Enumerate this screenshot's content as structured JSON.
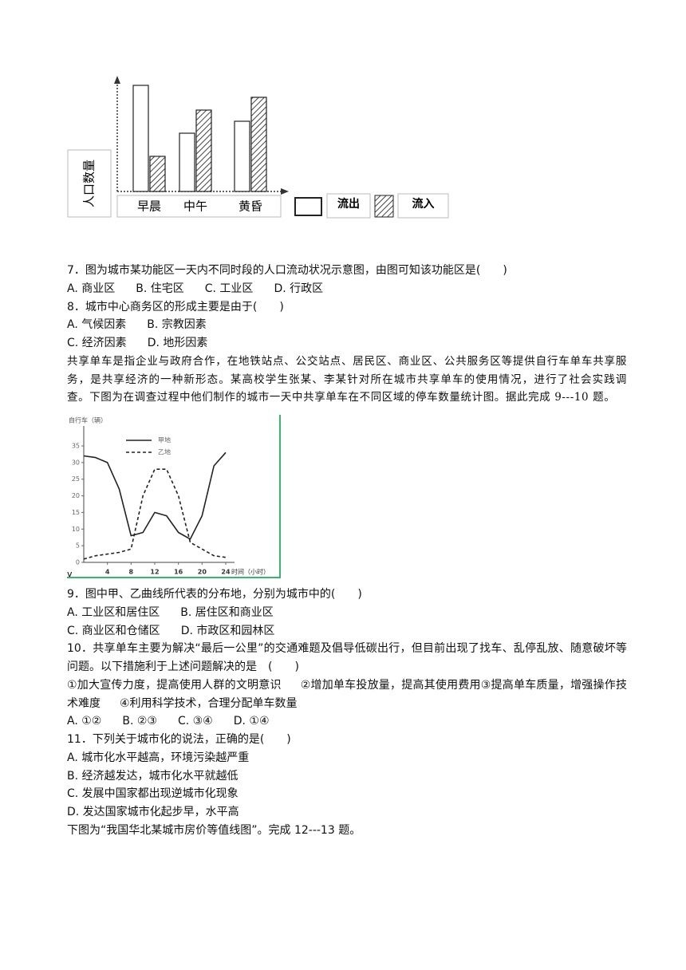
{
  "chart_data": [
    {
      "type": "bar",
      "y_axis_label": "人口数量",
      "categories": [
        "早晨",
        "中午",
        "黄昏"
      ],
      "series": [
        {
          "name": "流出",
          "color": "#ffffff",
          "pattern": "none",
          "values": [
            133,
            73,
            88
          ]
        },
        {
          "name": "流入",
          "color": "#444444",
          "pattern": "diagonal-hatch",
          "values": [
            44,
            102,
            118
          ]
        }
      ],
      "ylim": [
        0,
        150
      ]
    },
    {
      "type": "line",
      "y_axis_label": "自行车（辆）",
      "x_axis_label": "时间（小时）",
      "x": [
        0,
        2,
        4,
        6,
        8,
        10,
        12,
        14,
        16,
        18,
        20,
        22,
        24
      ],
      "series": [
        {
          "name": "甲地",
          "color": "#222222",
          "dash": "solid",
          "values": [
            32,
            31.5,
            30,
            22,
            8,
            9,
            15,
            14,
            9,
            7,
            14,
            29,
            33
          ]
        },
        {
          "name": "乙地",
          "color": "#222222",
          "dash": "dashed",
          "values": [
            1,
            2,
            2.5,
            3,
            4,
            20,
            28,
            28,
            20,
            6,
            4,
            2,
            1.5
          ]
        }
      ],
      "xlim": [
        0,
        24
      ],
      "ylim": [
        0,
        35
      ],
      "xticks": [
        4,
        8,
        12,
        16,
        20,
        24
      ],
      "yticks": [
        0,
        5,
        10,
        15,
        20,
        25,
        30,
        35
      ]
    }
  ],
  "figure_note": "v",
  "questions": [
    {
      "stem": "7．图为城市某功能区一天内不同时段的人口流动状况示意图，由图可知该功能区是(　　)",
      "options": [
        [
          "A. 商业区",
          "B. 住宅区",
          "C. 工业区",
          "D. 行政区"
        ]
      ]
    },
    {
      "stem": "8．城市中心商务区的形成主要是由于(　　)",
      "options": [
        [
          "A. 气候因素",
          "B. 宗教因素"
        ],
        [
          "C. 经济因素",
          "D. 地形因素"
        ]
      ]
    },
    {
      "stem": "9．图中甲、乙曲线所代表的分布地，分别为城市中的(　　)",
      "options": [
        [
          "A. 工业区和居住区",
          "B. 居住区和商业区"
        ],
        [
          "C. 商业区和仓储区",
          "D. 市政区和园林区"
        ]
      ]
    },
    {
      "stem": "10．共享单车主要为解决“最后一公里”的交通难题及倡导低碳出行，但目前出现了找车、乱停乱放、随意破坏等问题。以下措施利于上述问题解决的是　(　　)",
      "statements": [
        "①加大宣传力度，提高使用人群的文明意识",
        "②增加单车投放量，提高其使用费用",
        "③提高单车质量，增强操作技术难度",
        "④利用科学技术，合理分配单车数量"
      ],
      "options": [
        [
          "A. ①②",
          "B. ②③",
          "C. ③④",
          "D. ①④"
        ]
      ]
    },
    {
      "stem": "11．下列关于城市化的说法，正确的是(　　)",
      "options": [
        [
          "A. 城市化水平越高，环境污染越严重"
        ],
        [
          "B. 经济越发达，城市化水平就越低"
        ],
        [
          "C. 发展中国家都出现逆城市化现象"
        ],
        [
          "D. 发达国家城市化起步早，水平高"
        ]
      ]
    }
  ],
  "passage": "共享单车是指企业与政府合作，在地铁站点、公交站点、居民区、商业区、公共服务区等提供自行车单车共享服务，是共享经济的一种新形态。某高校学生张某、李某针对所在城市共享单车的使用情况，进行了社会实践调查。下图为在调查过程中他们制作的城市一天中共享单车在不同区域的停车数量统计图。据此完成 9---10 题。",
  "intro": "下图为“我国华北某城市房价等值线图”。完成 12---13 题。"
}
